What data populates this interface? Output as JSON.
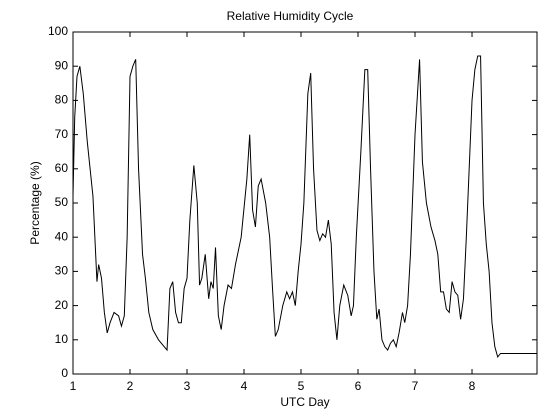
{
  "chart_data": {
    "type": "line",
    "title": "Relative Humidity Cycle",
    "x_label": "UTC Day",
    "y_label": "Percentage (%)",
    "x": [
      1.0,
      1.03,
      1.07,
      1.12,
      1.18,
      1.25,
      1.35,
      1.42,
      1.45,
      1.5,
      1.55,
      1.6,
      1.65,
      1.72,
      1.8,
      1.85,
      1.9,
      1.95,
      2.0,
      2.05,
      2.1,
      2.15,
      2.22,
      2.27,
      2.33,
      2.4,
      2.5,
      2.6,
      2.65,
      2.7,
      2.75,
      2.8,
      2.85,
      2.9,
      2.95,
      3.0,
      3.05,
      3.12,
      3.18,
      3.22,
      3.26,
      3.32,
      3.38,
      3.42,
      3.46,
      3.5,
      3.55,
      3.6,
      3.65,
      3.72,
      3.78,
      3.85,
      3.95,
      4.05,
      4.1,
      4.15,
      4.2,
      4.25,
      4.3,
      4.38,
      4.45,
      4.5,
      4.55,
      4.6,
      4.68,
      4.75,
      4.8,
      4.85,
      4.9,
      4.95,
      5.0,
      5.05,
      5.12,
      5.17,
      5.22,
      5.28,
      5.33,
      5.38,
      5.43,
      5.48,
      5.53,
      5.58,
      5.63,
      5.68,
      5.75,
      5.82,
      5.88,
      5.92,
      5.97,
      6.05,
      6.12,
      6.17,
      6.22,
      6.28,
      6.33,
      6.37,
      6.42,
      6.47,
      6.52,
      6.57,
      6.62,
      6.67,
      6.72,
      6.78,
      6.82,
      6.87,
      6.92,
      7.0,
      7.08,
      7.13,
      7.2,
      7.28,
      7.35,
      7.4,
      7.45,
      7.5,
      7.55,
      7.6,
      7.65,
      7.7,
      7.75,
      7.8,
      7.85,
      7.9,
      7.95,
      8.0,
      8.05,
      8.1,
      8.15,
      8.2,
      8.25,
      8.3,
      8.35,
      8.4,
      8.45,
      8.5,
      8.8,
      9.14
    ],
    "series": [
      {
        "color": "#000000",
        "values": [
          52,
          75,
          87,
          90,
          82,
          68,
          52,
          27,
          32,
          28,
          18,
          12,
          15,
          18,
          17,
          14,
          17,
          40,
          87,
          90,
          92,
          60,
          35,
          28,
          18,
          13,
          10,
          8,
          7,
          25,
          27,
          18,
          15,
          15,
          25,
          28,
          45,
          61,
          50,
          26,
          28,
          35,
          22,
          27,
          25,
          37,
          17,
          13,
          20,
          26,
          25,
          32,
          40,
          57,
          70,
          48,
          43,
          55,
          57,
          50,
          40,
          25,
          11,
          13,
          20,
          24,
          22,
          24,
          20,
          30,
          38,
          50,
          82,
          88,
          60,
          42,
          39,
          41,
          40,
          45,
          38,
          18,
          10,
          20,
          26,
          23,
          17,
          20,
          40,
          65,
          89,
          89,
          60,
          30,
          16,
          19,
          10,
          8,
          7,
          9,
          10,
          8,
          12,
          18,
          15,
          20,
          35,
          70,
          92,
          62,
          50,
          43,
          39,
          35,
          24,
          24,
          19,
          18,
          27,
          24,
          23,
          16,
          22,
          40,
          60,
          80,
          89,
          93,
          93,
          50,
          38,
          30,
          15,
          8,
          5,
          6,
          6,
          6
        ]
      }
    ],
    "xlim": [
      1,
      9.14
    ],
    "ylim": [
      0,
      100
    ],
    "xticks": [
      1,
      2,
      3,
      4,
      5,
      6,
      7,
      8
    ],
    "yticks": [
      0,
      10,
      20,
      30,
      40,
      50,
      60,
      70,
      80,
      90,
      100
    ]
  }
}
